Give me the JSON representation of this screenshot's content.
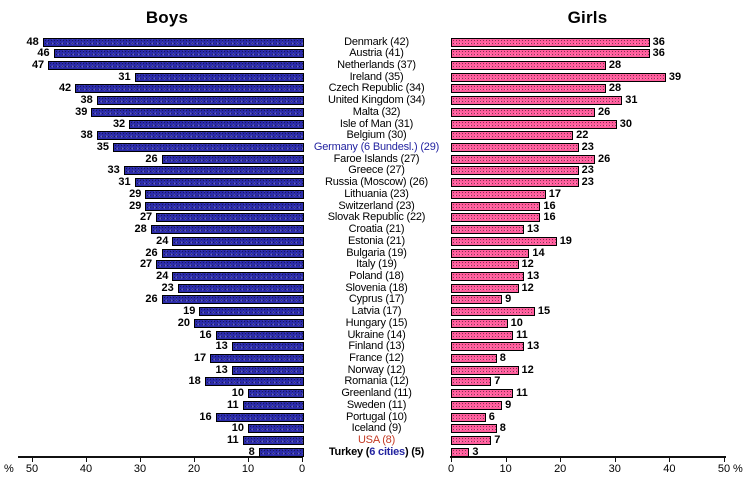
{
  "titles": {
    "left": "Boys",
    "right": "Girls"
  },
  "axis": {
    "percent_sign": "%",
    "left_tick_labels": [
      "50",
      "40",
      "30",
      "20",
      "10",
      "0"
    ],
    "right_tick_labels": [
      "0",
      "10",
      "20",
      "30",
      "40",
      "50"
    ],
    "max": 50
  },
  "colors": {
    "boys_bar": "#2b2baa",
    "girls_bar": "#ff5c9c",
    "bar_border": "#000000",
    "germany_label": "#2323a0",
    "usa_label": "#c43a24",
    "turkey_accent": "#2323a0",
    "default_label": "#000000"
  },
  "label_styles": {
    "9": {
      "color": "#2323a0",
      "bold": false
    },
    "34": {
      "color": "#c43a24",
      "bold": false
    },
    "35": {
      "color": "#000000",
      "bold": true,
      "accent": "6 cities",
      "accent_color": "#2323a0"
    }
  },
  "chart_data": {
    "type": "bar",
    "orientation": "horizontal-mirrored",
    "title_left": "Boys",
    "title_right": "Girls",
    "xlabel": "%",
    "xlim": [
      0,
      50
    ],
    "grid": false,
    "legend": "none",
    "categories": [
      "Denmark (42)",
      "Austria (41)",
      "Netherlands (37)",
      "Ireland (35)",
      "Czech Republic (34)",
      "United Kingdom (34)",
      "Malta (32)",
      "Isle of Man (31)",
      "Belgium (30)",
      "Germany (6 Bundesl.) (29)",
      "Faroe Islands (27)",
      "Greece (27)",
      "Russia (Moscow) (26)",
      "Lithuania (23)",
      "Switzerland (23)",
      "Slovak Republic (22)",
      "Croatia (21)",
      "Estonia (21)",
      "Bulgaria (19)",
      "Italy (19)",
      "Poland (18)",
      "Slovenia (18)",
      "Cyprus (17)",
      "Latvia (17)",
      "Hungary (15)",
      "Ukraine (14)",
      "Finland (13)",
      "France (12)",
      "Norway (12)",
      "Romania (12)",
      "Greenland (11)",
      "Sweden (11)",
      "Portugal (10)",
      "Iceland (9)",
      "USA (8)",
      "Turkey (6 cities) (5)"
    ],
    "series": [
      {
        "name": "Boys",
        "values": [
          48,
          46,
          47,
          31,
          42,
          38,
          39,
          32,
          38,
          35,
          26,
          33,
          31,
          29,
          29,
          27,
          28,
          24,
          26,
          27,
          24,
          23,
          26,
          19,
          20,
          16,
          13,
          17,
          13,
          18,
          10,
          11,
          16,
          10,
          11,
          8
        ]
      },
      {
        "name": "Girls",
        "values": [
          36,
          36,
          28,
          39,
          28,
          31,
          26,
          30,
          22,
          23,
          26,
          23,
          23,
          17,
          16,
          16,
          13,
          19,
          14,
          12,
          13,
          12,
          9,
          15,
          10,
          11,
          13,
          8,
          12,
          7,
          11,
          9,
          6,
          8,
          7,
          3
        ]
      }
    ]
  }
}
